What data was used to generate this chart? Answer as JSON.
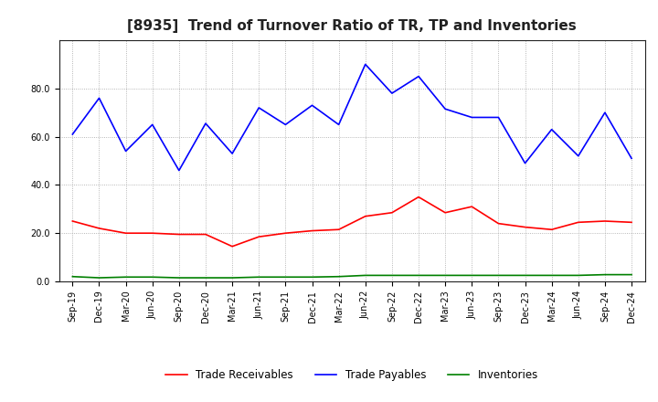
{
  "title": "[8935]  Trend of Turnover Ratio of TR, TP and Inventories",
  "x_labels": [
    "Sep-19",
    "Dec-19",
    "Mar-20",
    "Jun-20",
    "Sep-20",
    "Dec-20",
    "Mar-21",
    "Jun-21",
    "Sep-21",
    "Dec-21",
    "Mar-22",
    "Jun-22",
    "Sep-22",
    "Dec-22",
    "Mar-23",
    "Jun-23",
    "Sep-23",
    "Dec-23",
    "Mar-24",
    "Jun-24",
    "Sep-24",
    "Dec-24"
  ],
  "trade_receivables": [
    25.0,
    22.0,
    20.0,
    20.0,
    19.5,
    19.5,
    14.5,
    18.5,
    20.0,
    21.0,
    21.5,
    27.0,
    28.5,
    35.0,
    28.5,
    31.0,
    24.0,
    22.5,
    21.5,
    24.5,
    25.0,
    24.5
  ],
  "trade_payables": [
    61.0,
    76.0,
    54.0,
    65.0,
    46.0,
    65.5,
    53.0,
    72.0,
    65.0,
    73.0,
    65.0,
    90.0,
    78.0,
    85.0,
    71.5,
    68.0,
    68.0,
    49.0,
    63.0,
    52.0,
    70.0,
    51.0
  ],
  "inventories": [
    2.0,
    1.5,
    1.8,
    1.8,
    1.5,
    1.5,
    1.5,
    1.8,
    1.8,
    1.8,
    2.0,
    2.5,
    2.5,
    2.5,
    2.5,
    2.5,
    2.5,
    2.5,
    2.5,
    2.5,
    2.8,
    2.8
  ],
  "tr_color": "#ff0000",
  "tp_color": "#0000ff",
  "inv_color": "#008000",
  "ylim": [
    0.0,
    100.0
  ],
  "yticks": [
    0.0,
    20.0,
    40.0,
    60.0,
    80.0
  ],
  "background_color": "#ffffff",
  "plot_bg_color": "#ffffff",
  "grid_color": "#999999",
  "title_fontsize": 11,
  "axis_fontsize": 7,
  "legend_fontsize": 8.5,
  "legend_labels": [
    "Trade Receivables",
    "Trade Payables",
    "Inventories"
  ]
}
